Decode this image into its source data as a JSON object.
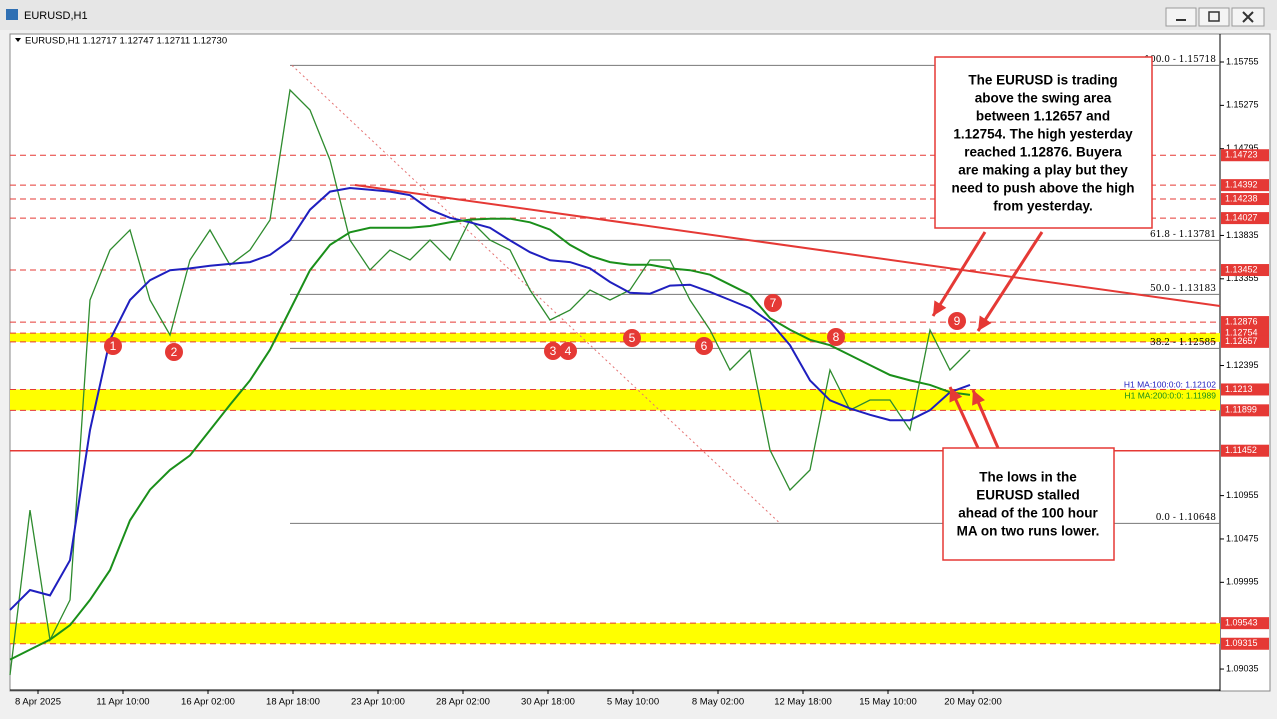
{
  "window": {
    "title": "EURUSD,H1"
  },
  "chart_data": {
    "type": "line",
    "title": "EURUSD,H1 1.12717 1.12747 1.12711 1.12730",
    "ylim": [
      1.08803,
      1.16054
    ],
    "yticks": [
      1.15755,
      1.15275,
      1.14795,
      1.13835,
      1.13355,
      1.12395,
      1.10955,
      1.10475,
      1.09995,
      1.09035
    ],
    "time_labels": [
      "8 Apr 2025",
      "11 Apr 10:00",
      "16 Apr 02:00",
      "18 Apr 18:00",
      "23 Apr 10:00",
      "28 Apr 02:00",
      "30 Apr 18:00",
      "5 May 10:00",
      "8 May 02:00",
      "12 May 18:00",
      "15 May 10:00",
      "20 May 02:00"
    ],
    "series": [
      {
        "name": "EURUSD",
        "color": "#2e8b2e",
        "values": [
          1.08969,
          1.10795,
          1.09356,
          1.09799,
          1.1312,
          1.13674,
          1.13895,
          1.1312,
          1.12733,
          1.13563,
          1.13895,
          1.13508,
          1.13674,
          1.14006,
          1.15445,
          1.15224,
          1.1467,
          1.13784,
          1.13452,
          1.13674,
          1.13563,
          1.13784,
          1.13563,
          1.14006,
          1.13784,
          1.13674,
          1.13231,
          1.12899,
          1.13009,
          1.13231,
          1.1312,
          1.13231,
          1.13563,
          1.13563,
          1.1312,
          1.12788,
          1.12345,
          1.12567,
          1.1146,
          1.11017,
          1.11238,
          1.12345,
          1.11902,
          1.12013,
          1.12013,
          1.11681,
          1.12788,
          1.12345,
          1.12567
        ]
      },
      {
        "name": "H1 MA:100:0:0: 1.12102",
        "color": "#1f1fbf",
        "values": [
          1.0969,
          1.0991,
          1.0985,
          1.1024,
          1.1168,
          1.1268,
          1.1312,
          1.1334,
          1.1345,
          1.1347,
          1.135,
          1.1352,
          1.1354,
          1.1362,
          1.1378,
          1.1412,
          1.1432,
          1.1436,
          1.1434,
          1.1432,
          1.1428,
          1.1412,
          1.1403,
          1.1398,
          1.1392,
          1.1378,
          1.1365,
          1.1356,
          1.1354,
          1.1347,
          1.1332,
          1.132,
          1.1319,
          1.1328,
          1.1329,
          1.1321,
          1.1312,
          1.1303,
          1.1288,
          1.1262,
          1.1223,
          1.1201,
          1.1192,
          1.1185,
          1.1179,
          1.1179,
          1.119,
          1.121,
          1.1218
        ]
      },
      {
        "name": "H1 MA:200:0:0: 1.11989",
        "color": "#1a8f1a",
        "values": [
          1.0914,
          1.0925,
          1.0936,
          1.0952,
          1.098,
          1.1013,
          1.1068,
          1.1102,
          1.1124,
          1.114,
          1.1168,
          1.1196,
          1.1223,
          1.1257,
          1.1301,
          1.1345,
          1.1373,
          1.1387,
          1.1392,
          1.1392,
          1.1392,
          1.1394,
          1.1398,
          1.1401,
          1.1402,
          1.1402,
          1.1398,
          1.139,
          1.1373,
          1.1361,
          1.1354,
          1.1351,
          1.1351,
          1.1347,
          1.1345,
          1.134,
          1.1329,
          1.1318,
          1.1292,
          1.1279,
          1.1268,
          1.1262,
          1.1251,
          1.124,
          1.1229,
          1.1223,
          1.1218,
          1.121,
          1.1207
        ]
      }
    ],
    "level_color": "#e53935",
    "levels": [
      {
        "value": 1.14723,
        "style": "dashed"
      },
      {
        "value": 1.14392,
        "style": "dashed"
      },
      {
        "value": 1.14238,
        "style": "dashed"
      },
      {
        "value": 1.14027,
        "style": "dashed"
      },
      {
        "value": 1.13452,
        "style": "dashed"
      },
      {
        "value": 1.12876,
        "style": "dashed"
      },
      {
        "value": 1.12754,
        "style": "dashed"
      },
      {
        "value": 1.12657,
        "style": "dashed"
      },
      {
        "value": 1.1213,
        "style": "dashed"
      },
      {
        "value": 1.11899,
        "style": "dashed"
      },
      {
        "value": 1.11452,
        "style": "solid"
      },
      {
        "value": 1.09543,
        "style": "dashed"
      },
      {
        "value": 1.09315,
        "style": "dashed"
      }
    ],
    "zone_color": "#ffff00",
    "zones": [
      [
        1.12657,
        1.12754
      ],
      [
        1.11899,
        1.1213
      ],
      [
        1.09315,
        1.09543
      ]
    ],
    "fib_levels": [
      {
        "value": 1.15718,
        "label": "100.0 - 1.15718"
      },
      {
        "value": 1.13781,
        "label": "61.8 - 1.13781"
      },
      {
        "value": 1.13183,
        "label": "50.0 - 1.13183"
      },
      {
        "value": 1.12585,
        "label": "38.2 - 1.12585"
      },
      {
        "value": 1.10648,
        "label": "0.0 - 1.10648"
      }
    ],
    "markers": [
      "1",
      "2",
      "3",
      "4",
      "5",
      "6",
      "7",
      "8",
      "9"
    ],
    "annotations": [
      [
        "The EURUSD is trading",
        "above the swing area",
        "between 1.12657 and",
        "1.12754. The high yesterday",
        "reached 1.12876. Buyera",
        "are making a play but they",
        "need to push above the high",
        "from yesterday."
      ],
      [
        "The lows in the",
        "EURUSD stalled",
        "ahead of the 100 hour",
        "MA on two runs lower."
      ]
    ]
  }
}
